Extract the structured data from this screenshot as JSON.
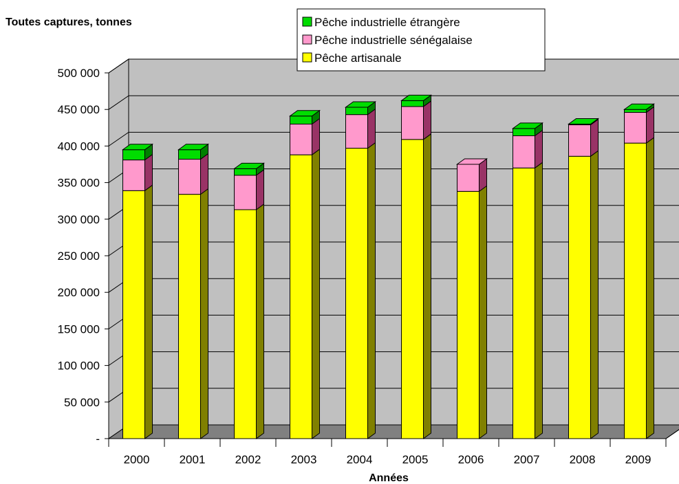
{
  "chart_data": {
    "type": "bar",
    "stacked": true,
    "three_d": true,
    "title": "Toutes captures, tonnes",
    "xlabel": "Années",
    "ylabel": "",
    "ylim": [
      0,
      500000
    ],
    "y_ticks": [
      "-",
      "50 000",
      "100 000",
      "150 000",
      "200 000",
      "250 000",
      "300 000",
      "350 000",
      "400 000",
      "450 000",
      "500 000"
    ],
    "grid": true,
    "legend_position": "top-right",
    "categories": [
      "2000",
      "2001",
      "2002",
      "2003",
      "2004",
      "2005",
      "2006",
      "2007",
      "2008",
      "2009"
    ],
    "series": [
      {
        "name": "Pêche artisanale",
        "color": "#ffff00",
        "values": [
          339000,
          334000,
          313000,
          388000,
          397000,
          409000,
          338000,
          370000,
          386000,
          404000
        ]
      },
      {
        "name": "Pêche industrielle sénégalaise",
        "color": "#ff99cc",
        "values": [
          42000,
          48000,
          47000,
          42000,
          46000,
          45000,
          37000,
          44000,
          43000,
          42000
        ]
      },
      {
        "name": "Pêche industrielle étrangère",
        "color": "#00dd00",
        "values": [
          14000,
          13000,
          9000,
          11000,
          10000,
          8000,
          0,
          10000,
          1000,
          4000
        ]
      }
    ],
    "legend_order": [
      2,
      1,
      0
    ],
    "colors": {
      "wall": "#c0c0c0",
      "floor": "#808080",
      "artisanale_side": "#808000",
      "senegalaise_side": "#993366",
      "etrangere_side": "#008000"
    }
  }
}
